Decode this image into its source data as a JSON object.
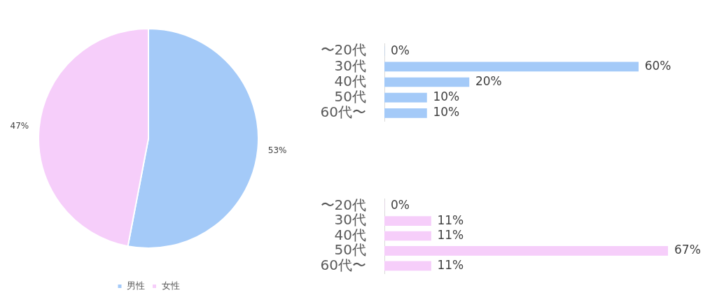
{
  "chart_data": [
    {
      "type": "pie",
      "categories": [
        "男性",
        "女性"
      ],
      "values": [
        53,
        47
      ],
      "colors": [
        "#a4caf8",
        "#f6cefa"
      ],
      "value_labels": [
        "53%",
        "47%"
      ],
      "legend": "bottom"
    },
    {
      "type": "bar",
      "orientation": "horizontal",
      "categories": [
        "〜20代",
        "30代",
        "40代",
        "50代",
        "60代〜"
      ],
      "values": [
        0,
        60,
        20,
        10,
        10
      ],
      "color": "#a4caf8",
      "value_labels": [
        "0%",
        "60%",
        "20%",
        "10%",
        "10%"
      ],
      "tick_labels": "y"
    },
    {
      "type": "bar",
      "orientation": "horizontal",
      "categories": [
        "〜20代",
        "30代",
        "40代",
        "50代",
        "60代〜"
      ],
      "values": [
        0,
        11,
        11,
        67,
        11
      ],
      "color": "#f6cefa",
      "value_labels": [
        "0%",
        "11%",
        "11%",
        "67%",
        "11%"
      ],
      "tick_labels": "y"
    }
  ]
}
